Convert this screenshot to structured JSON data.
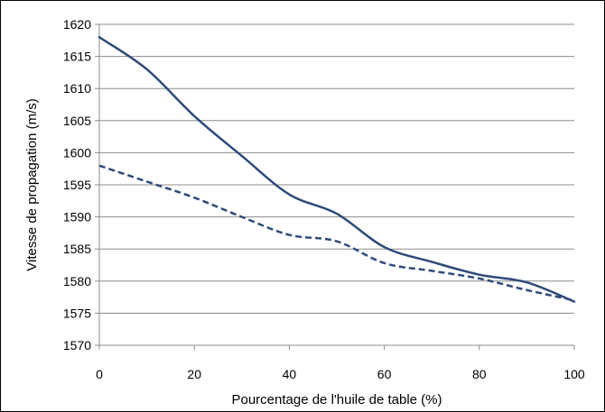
{
  "chart_data": {
    "type": "line",
    "title": "",
    "xlabel": "Pourcentage de l'huile de table (%)",
    "ylabel": "Vitesse de propagation (m/s)",
    "xlim": [
      0,
      100
    ],
    "ylim": [
      1570,
      1620
    ],
    "xticks": [
      0,
      20,
      40,
      60,
      80,
      100
    ],
    "yticks": [
      1570,
      1575,
      1580,
      1585,
      1590,
      1595,
      1600,
      1605,
      1610,
      1615,
      1620
    ],
    "grid": true,
    "legend": "none",
    "series": [
      {
        "style": "solid",
        "color": "#2e4a7a",
        "x": [
          0,
          10,
          20,
          30,
          40,
          50,
          60,
          70,
          80,
          90,
          100
        ],
        "y": [
          1618,
          1613,
          1605.7,
          1599.5,
          1593.5,
          1590.5,
          1585.3,
          1583,
          1581,
          1579.8,
          1576.8
        ]
      },
      {
        "style": "dashed",
        "color": "#2e4a7a",
        "x": [
          0,
          10,
          20,
          30,
          40,
          50,
          60,
          70,
          80,
          90,
          100
        ],
        "y": [
          1598,
          1595.5,
          1593,
          1590,
          1587.2,
          1586.2,
          1582.8,
          1581.6,
          1580.4,
          1578.6,
          1577
        ]
      }
    ]
  }
}
